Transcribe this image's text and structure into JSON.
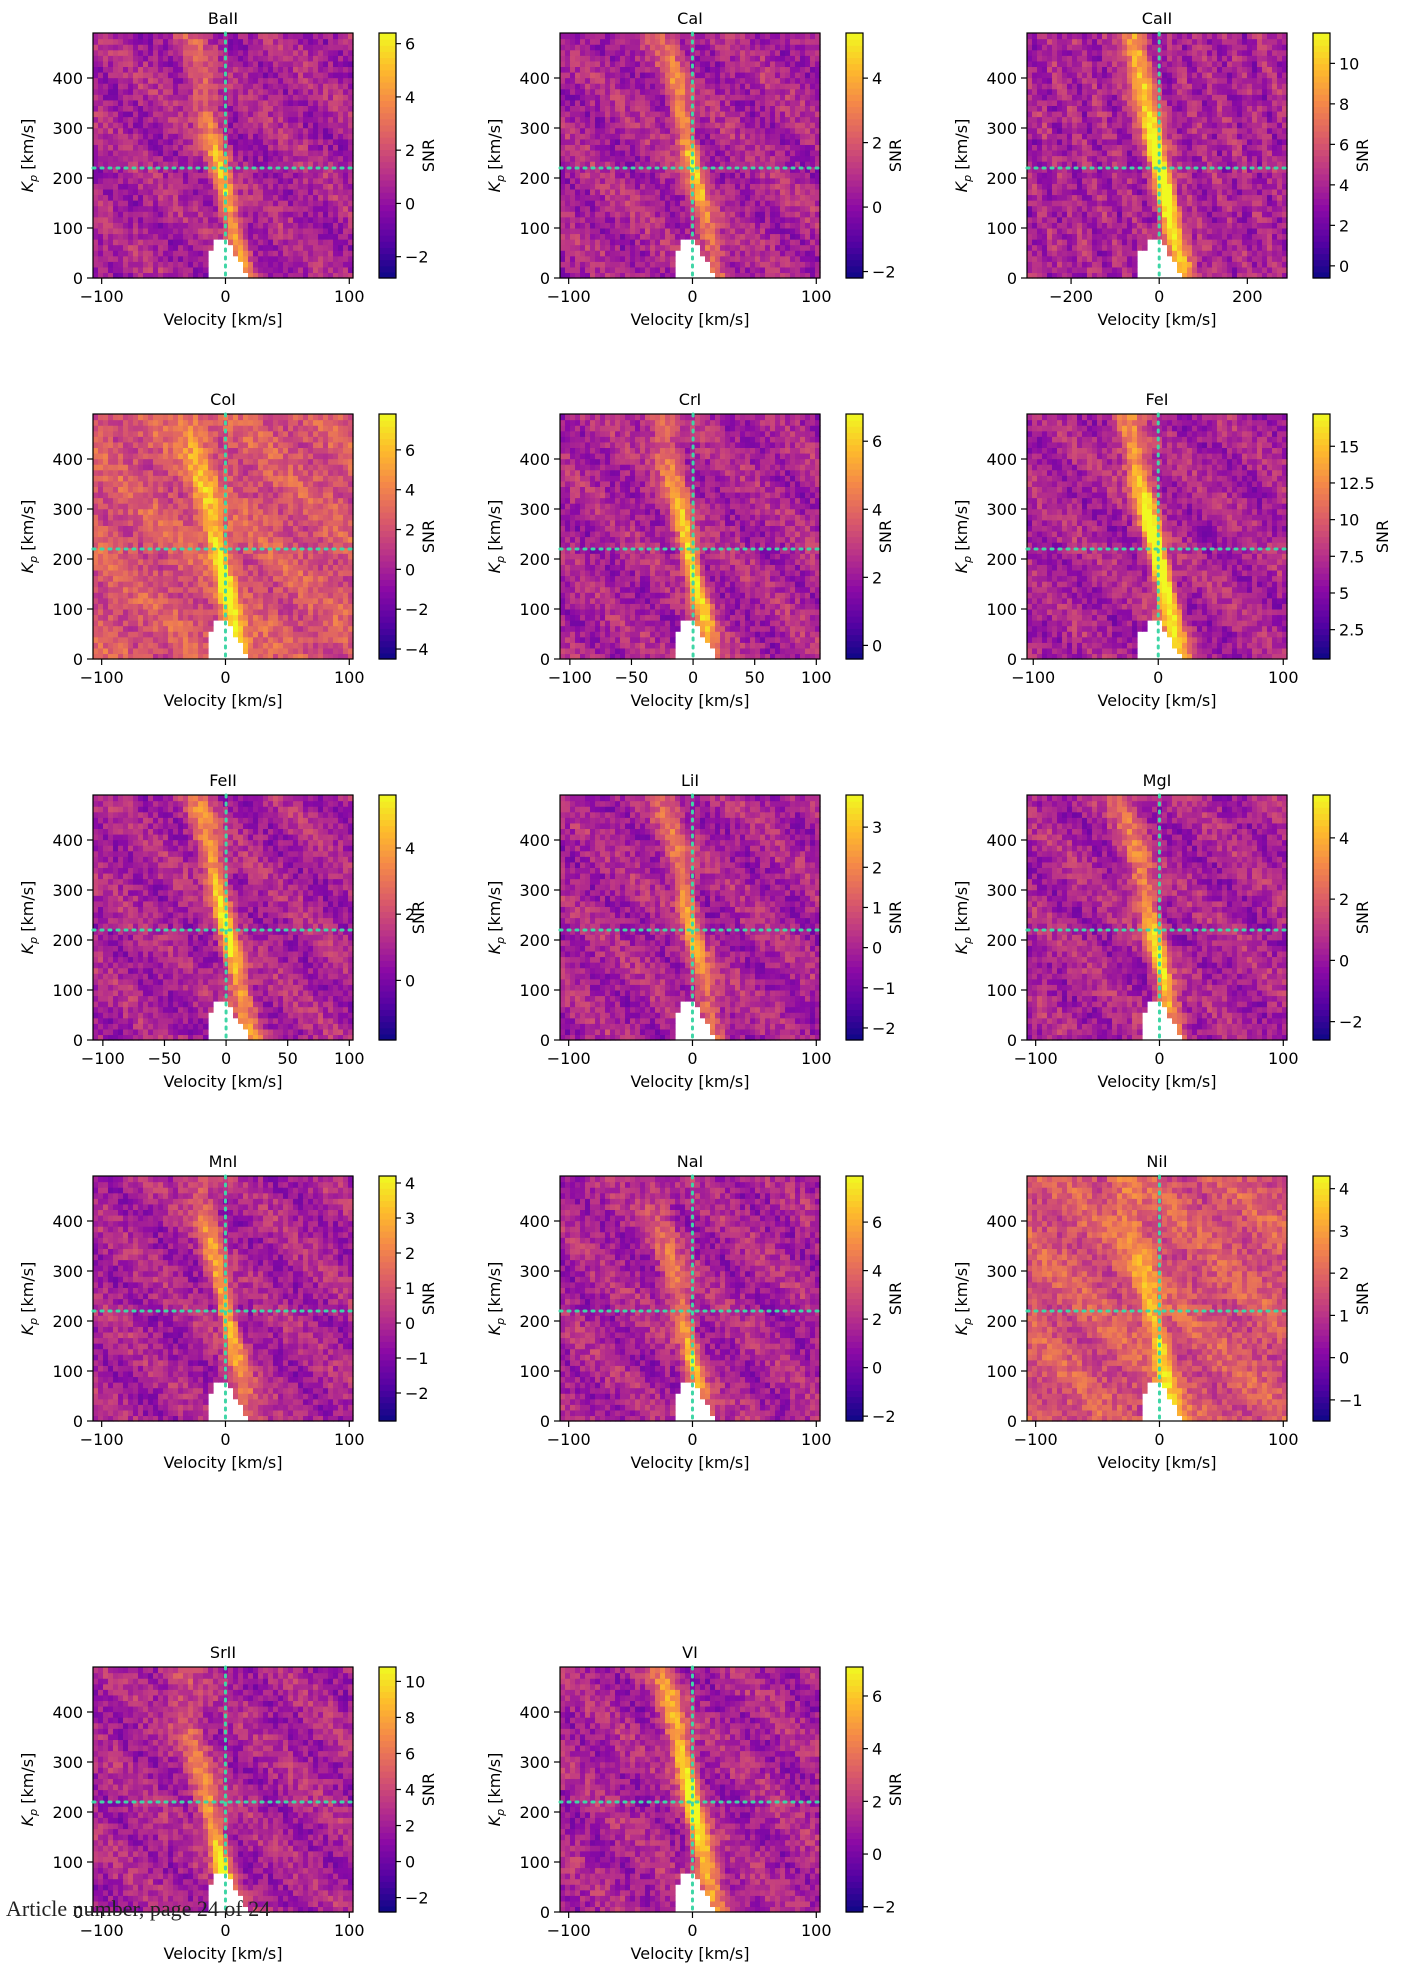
{
  "footer": "Article number, page 24 of 24",
  "common": {
    "xlabel": "Velocity [km/s]",
    "ylabel": "K_p [km/s]",
    "ylabel_main": "K",
    "ylabel_sub": "p",
    "ylabel_tail": " [km/s]",
    "colorbar_label": "SNR",
    "yticks": [
      0,
      100,
      200,
      300,
      400
    ],
    "ylim": [
      0,
      490
    ],
    "kp_marker": 220,
    "v_marker": 0,
    "colormap": "plasma",
    "marker_color": "#3fd6a6"
  },
  "chart_data": [
    {
      "type": "heatmap",
      "title": "BaII",
      "xlim": [
        -107,
        103
      ],
      "xticks": [
        -100,
        0,
        100
      ],
      "cbar": [
        -2.8,
        6.4
      ],
      "cticks": [
        -2,
        0,
        2,
        4,
        6
      ],
      "line_strength": 0.55,
      "line_kp": 170
    },
    {
      "type": "heatmap",
      "title": "CaI",
      "xlim": [
        -107,
        103
      ],
      "xticks": [
        -100,
        0,
        100
      ],
      "cbar": [
        -2.2,
        5.4
      ],
      "cticks": [
        -2,
        0,
        2,
        4
      ],
      "line_strength": 0.55,
      "line_kp": 230
    },
    {
      "type": "heatmap",
      "title": "CaII",
      "xlim": [
        -300,
        290
      ],
      "xticks": [
        -200,
        0,
        200
      ],
      "cbar": [
        -0.6,
        11.5
      ],
      "cticks": [
        0,
        2,
        4,
        6,
        8,
        10
      ],
      "line_strength": 0.95,
      "line_kp": 230
    },
    {
      "type": "heatmap",
      "title": "CoI",
      "xlim": [
        -107,
        103
      ],
      "xticks": [
        -100,
        0,
        100
      ],
      "cbar": [
        -4.5,
        7.8
      ],
      "cticks": [
        -4,
        -2,
        0,
        2,
        4,
        6
      ],
      "line_strength": 0.6,
      "line_kp": 150
    },
    {
      "type": "heatmap",
      "title": "CrI",
      "xlim": [
        -108,
        103
      ],
      "xticks": [
        -100,
        -50,
        0,
        50,
        100
      ],
      "cbar": [
        -0.4,
        6.8
      ],
      "cticks": [
        0,
        2,
        4,
        6
      ],
      "line_strength": 0.7,
      "line_kp": 180
    },
    {
      "type": "heatmap",
      "title": "FeI",
      "xlim": [
        -105,
        103
      ],
      "xticks": [
        -100,
        0,
        100
      ],
      "cbar": [
        0.5,
        17.2
      ],
      "cticks": [
        2.5,
        5.0,
        7.5,
        10.0,
        12.5,
        15.0
      ],
      "line_strength": 0.95,
      "line_kp": 200
    },
    {
      "type": "heatmap",
      "title": "FeII",
      "xlim": [
        -108,
        103
      ],
      "xticks": [
        -100,
        -50,
        0,
        50,
        100
      ],
      "cbar": [
        -1.8,
        5.6
      ],
      "cticks": [
        0,
        2,
        4
      ],
      "line_strength": 0.7,
      "line_kp": 230
    },
    {
      "type": "heatmap",
      "title": "LiI",
      "xlim": [
        -107,
        103
      ],
      "xticks": [
        -100,
        0,
        100
      ],
      "cbar": [
        -2.3,
        3.8
      ],
      "cticks": [
        -2,
        -1,
        0,
        1,
        2,
        3
      ],
      "line_strength": 0.5,
      "line_kp": 220
    },
    {
      "type": "heatmap",
      "title": "MgI",
      "xlim": [
        -107,
        103
      ],
      "xticks": [
        -100,
        0,
        100
      ],
      "cbar": [
        -2.6,
        5.4
      ],
      "cticks": [
        -2,
        0,
        2,
        4
      ],
      "line_strength": 0.65,
      "line_kp": 160
    },
    {
      "type": "heatmap",
      "title": "MnI",
      "xlim": [
        -107,
        103
      ],
      "xticks": [
        -100,
        0,
        100
      ],
      "cbar": [
        -2.8,
        4.2
      ],
      "cticks": [
        -2,
        -1,
        0,
        1,
        2,
        3,
        4
      ],
      "line_strength": 0.55,
      "line_kp": 230
    },
    {
      "type": "heatmap",
      "title": "NaI",
      "xlim": [
        -107,
        103
      ],
      "xticks": [
        -100,
        0,
        100
      ],
      "cbar": [
        -2.2,
        7.9
      ],
      "cticks": [
        -2,
        0,
        2,
        4,
        6
      ],
      "line_strength": 0.5,
      "line_kp": 120
    },
    {
      "type": "heatmap",
      "title": "NiI",
      "xlim": [
        -107,
        103
      ],
      "xticks": [
        -100,
        0,
        100
      ],
      "cbar": [
        -1.5,
        4.3
      ],
      "cticks": [
        -1,
        0,
        1,
        2,
        3,
        4
      ],
      "line_strength": 0.45,
      "line_kp": 150
    },
    {
      "type": "heatmap",
      "title": "SrII",
      "xlim": [
        -107,
        103
      ],
      "xticks": [
        -100,
        0,
        100
      ],
      "cbar": [
        -2.8,
        10.8
      ],
      "cticks": [
        -2,
        0,
        2,
        4,
        6,
        8,
        10
      ],
      "line_strength": 0.7,
      "line_kp": 60
    },
    {
      "type": "heatmap",
      "title": "VI",
      "xlim": [
        -107,
        103
      ],
      "xticks": [
        -100,
        0,
        100
      ],
      "cbar": [
        -2.2,
        7.1
      ],
      "cticks": [
        -2,
        0,
        2,
        4,
        6
      ],
      "line_strength": 0.8,
      "line_kp": 220
    }
  ]
}
